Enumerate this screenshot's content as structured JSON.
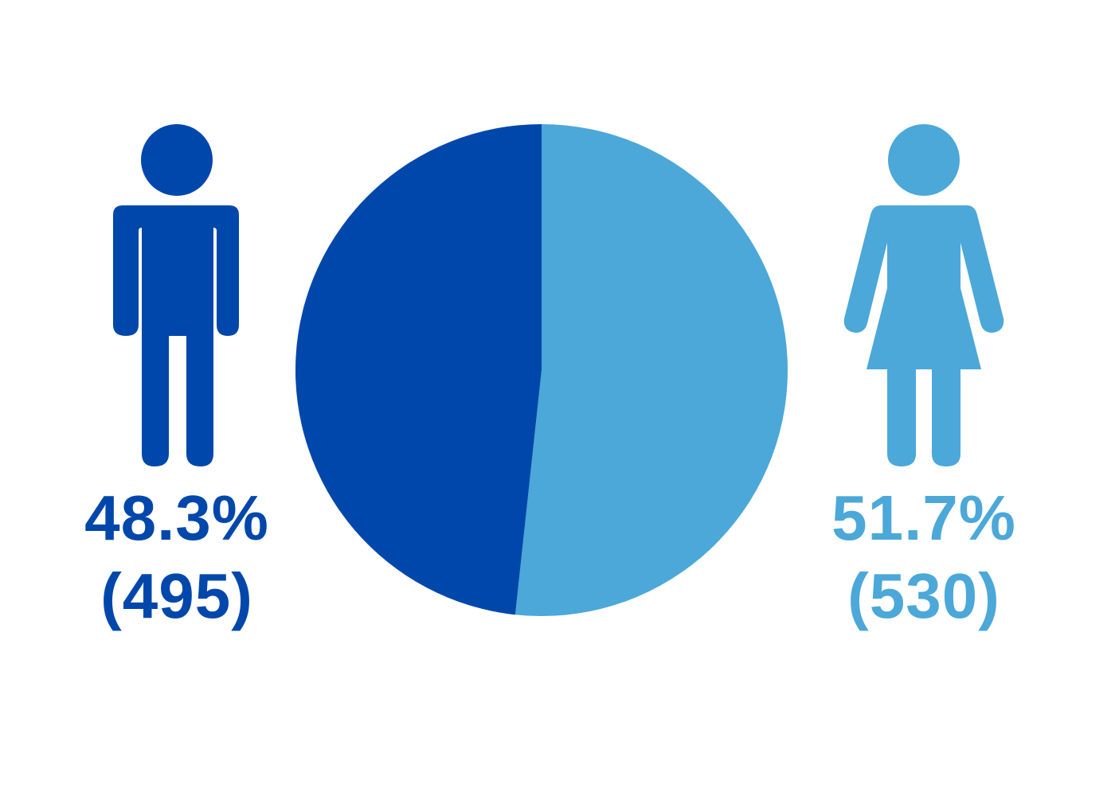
{
  "chart_data": {
    "type": "pie",
    "slices": [
      {
        "key": "male",
        "percent_label": "48.3%",
        "count_label": "(495)",
        "value": 495,
        "percent": 48.3,
        "color": "#0047AB",
        "icon": "male-figure-icon"
      },
      {
        "key": "female",
        "percent_label": "51.7%",
        "count_label": "(530)",
        "value": 530,
        "percent": 51.7,
        "color": "#4BA8D8",
        "icon": "female-figure-icon"
      }
    ]
  }
}
